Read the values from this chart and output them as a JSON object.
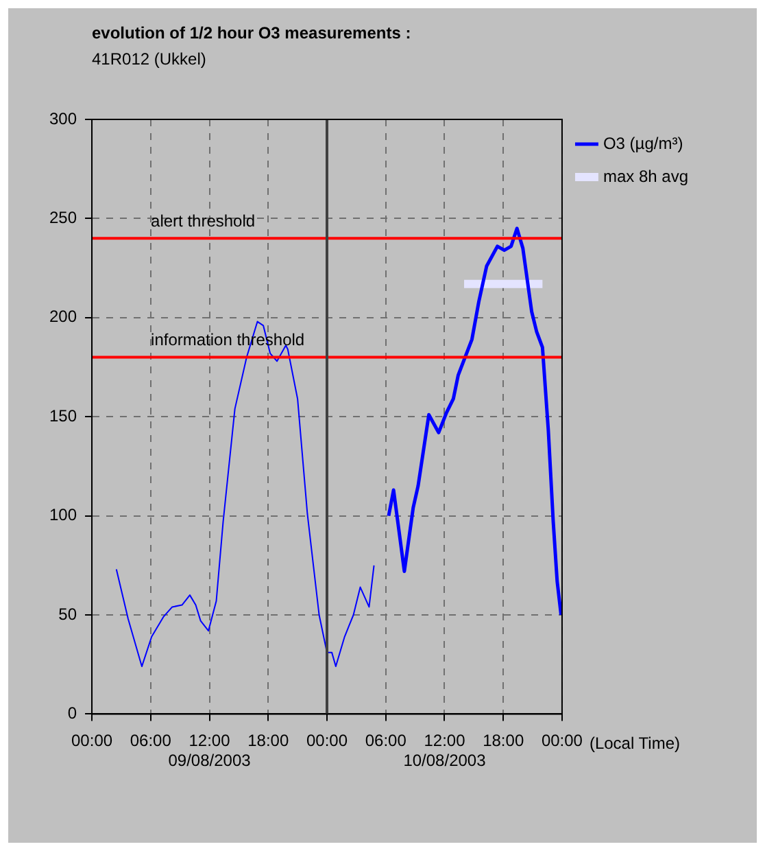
{
  "chart_data": {
    "type": "line",
    "title": "evolution of 1/2 hour O3 measurements :",
    "subtitle": "41R012 (Ukkel)",
    "xlabel": "(Local Time)",
    "xlim": [
      "2003-08-09T00:00",
      "2003-08-11T00:00"
    ],
    "xticks": [
      {
        "value": "2003-08-09T00:00",
        "label": "00:00"
      },
      {
        "value": "2003-08-09T06:00",
        "label": "06:00"
      },
      {
        "value": "2003-08-09T12:00",
        "label": "12:00\n09/08/2003"
      },
      {
        "value": "2003-08-09T18:00",
        "label": "18:00"
      },
      {
        "value": "2003-08-10T00:00",
        "label": "00:00"
      },
      {
        "value": "2003-08-10T06:00",
        "label": "06:00"
      },
      {
        "value": "2003-08-10T12:00",
        "label": "12:00\n10/08/2003"
      },
      {
        "value": "2003-08-10T18:00",
        "label": "18:00"
      },
      {
        "value": "2003-08-11T00:00",
        "label": "00:00"
      }
    ],
    "ylim": [
      0,
      300
    ],
    "yticks": [
      0,
      50,
      100,
      150,
      200,
      250,
      300
    ],
    "grid": true,
    "legend": "top right",
    "marker": "none",
    "line_style": "solid",
    "series": [
      {
        "color": "#0000ff",
        "x": [
          "2003-08-09T02:30",
          "2003-08-09T03:42",
          "2003-08-09T05:06",
          "2003-08-09T06:06",
          "2003-08-09T07:18",
          "2003-08-09T08:12",
          "2003-08-09T09:12",
          "2003-08-09T10:00",
          "2003-08-09T10:36",
          "2003-08-09T11:06",
          "2003-08-09T11:54",
          "2003-08-09T12:42",
          "2003-08-09T13:24",
          "2003-08-09T14:36",
          "2003-08-09T15:48",
          "2003-08-09T16:54",
          "2003-08-09T17:30",
          "2003-08-09T18:12",
          "2003-08-09T18:54",
          "2003-08-09T19:48",
          "2003-08-09T20:00",
          "2003-08-09T21:00",
          "2003-08-09T22:00",
          "2003-08-09T23:12",
          "2003-08-10T00:00",
          "2003-08-10T00:30",
          "2003-08-10T00:54",
          "2003-08-10T01:48",
          "2003-08-10T02:42",
          "2003-08-10T03:24",
          "2003-08-10T04:18",
          "2003-08-10T04:48"
        ],
        "values": [
          73,
          48,
          24,
          39,
          49,
          54,
          55,
          60,
          55,
          47,
          42,
          57,
          97,
          154,
          180,
          198,
          196,
          182,
          178,
          186,
          184,
          159,
          101,
          50,
          31,
          31,
          24,
          39,
          50,
          64,
          54,
          75
        ]
      },
      {
        "name": "O3 (µg/m³)",
        "color": "#0000ff",
        "x": [
          "2003-08-10T06:18",
          "2003-08-10T06:48",
          "2003-08-10T07:54",
          "2003-08-10T08:48",
          "2003-08-10T09:18",
          "2003-08-10T10:24",
          "2003-08-10T11:24",
          "2003-08-10T12:12",
          "2003-08-10T12:54",
          "2003-08-10T13:24",
          "2003-08-10T14:48",
          "2003-08-10T15:30",
          "2003-08-10T16:18",
          "2003-08-10T17:24",
          "2003-08-10T18:06",
          "2003-08-10T18:48",
          "2003-08-10T19:24",
          "2003-08-10T20:00",
          "2003-08-10T20:54",
          "2003-08-10T21:24",
          "2003-08-10T22:00",
          "2003-08-10T22:36",
          "2003-08-10T23:06",
          "2003-08-10T23:30",
          "2003-08-10T23:54"
        ],
        "values": [
          100,
          113,
          72,
          104,
          115,
          151,
          142,
          152,
          159,
          171,
          189,
          208,
          226,
          236,
          234,
          236,
          245,
          235,
          203,
          193,
          185,
          143,
          97,
          67,
          50
        ]
      },
      {
        "name": "max 8h avg",
        "color": "#e4e4ff",
        "x": [
          "2003-08-10T14:00",
          "2003-08-10T22:00"
        ],
        "values": [
          217,
          217
        ]
      }
    ],
    "ref_lines": [
      {
        "axis": "y",
        "value": 240,
        "label": "alert threshold",
        "color": "#ff0000"
      },
      {
        "axis": "y",
        "value": 180,
        "label": "information threshold",
        "color": "#ff0000"
      },
      {
        "axis": "x",
        "value": "2003-08-10T00:00",
        "color": "#404040"
      }
    ]
  }
}
